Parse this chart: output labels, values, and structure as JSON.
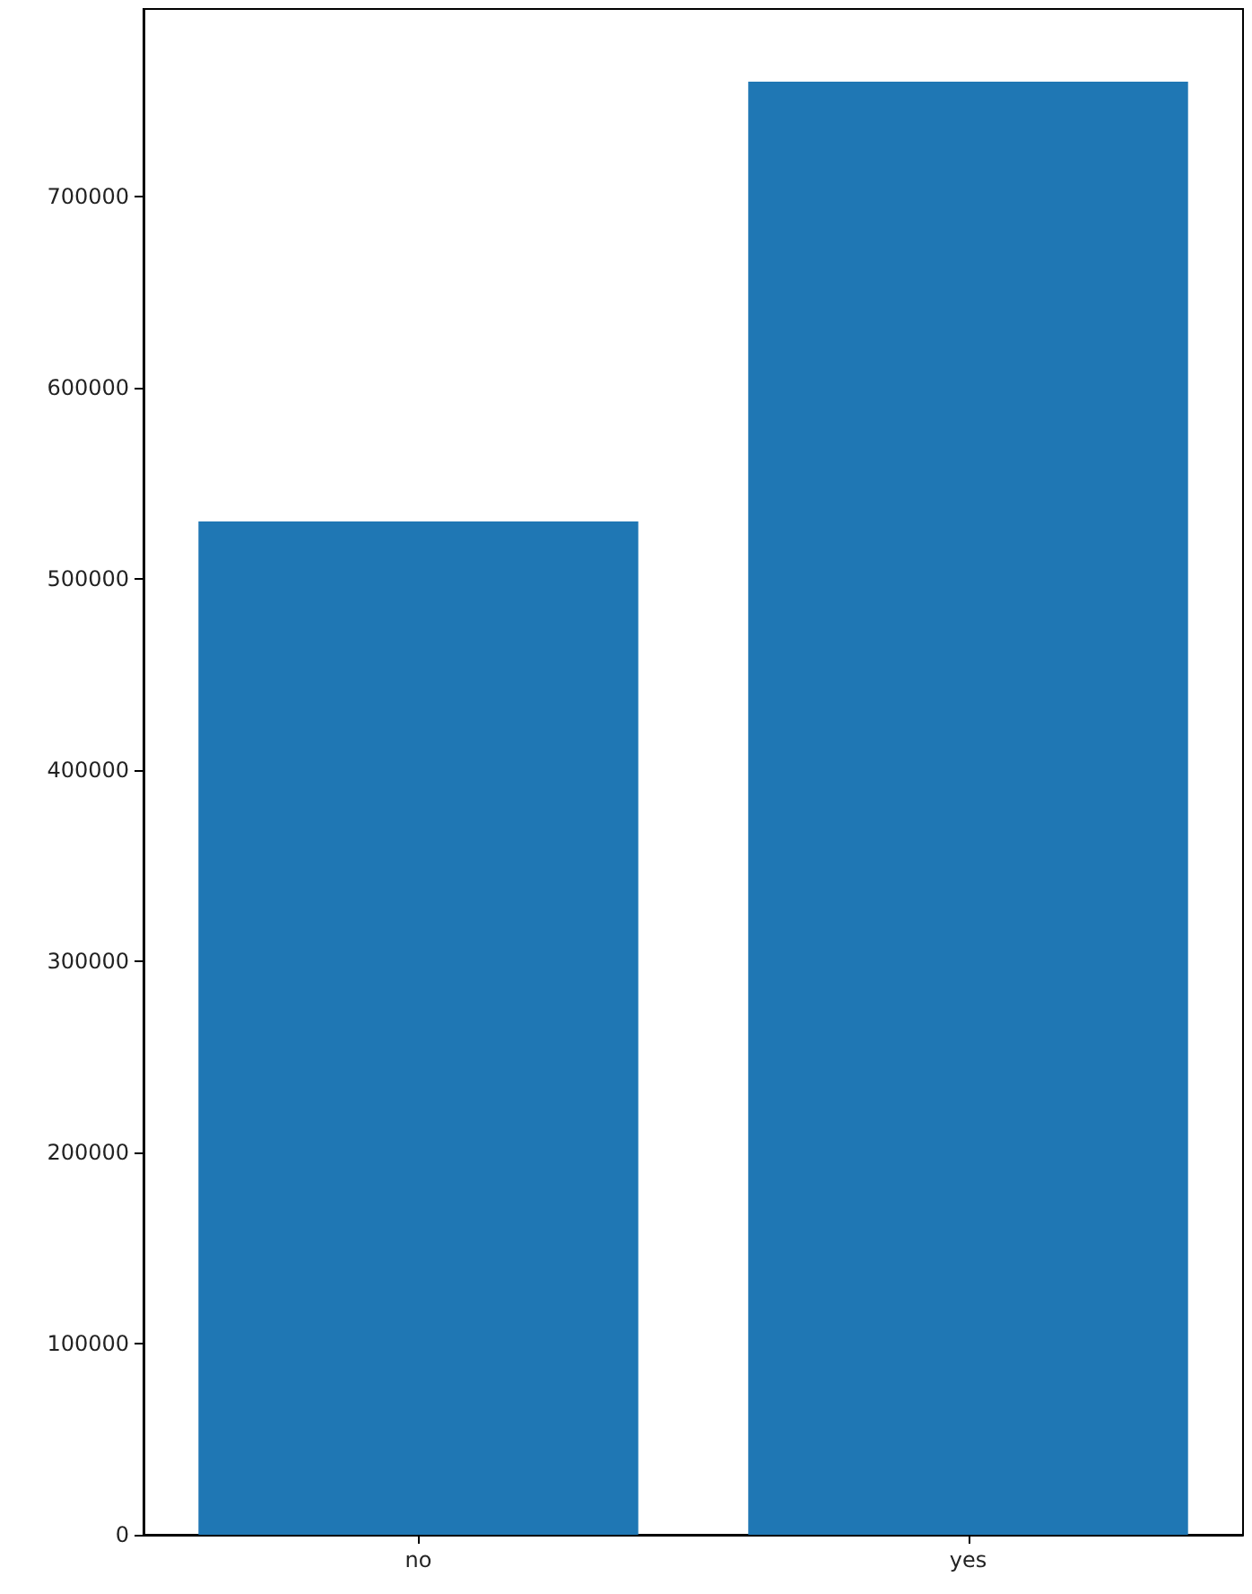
{
  "chart_data": {
    "type": "bar",
    "categories": [
      "no",
      "yes"
    ],
    "values": [
      530000,
      760000
    ],
    "color": "#1f77b4",
    "ylim": [
      0,
      798000
    ],
    "yticks": [
      0,
      100000,
      200000,
      300000,
      400000,
      500000,
      600000,
      700000
    ],
    "grid": false
  }
}
